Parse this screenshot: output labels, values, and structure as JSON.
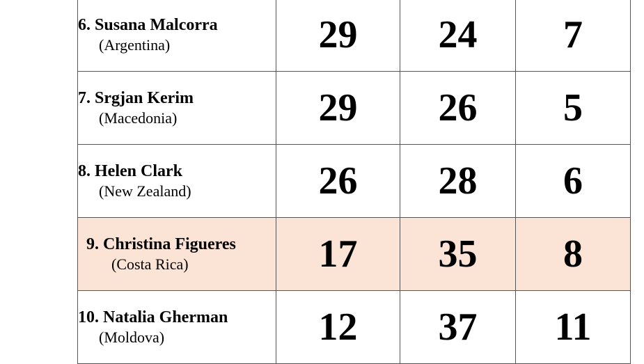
{
  "highlight_color": "#fbe4d6",
  "rows": [
    {
      "index": "6.",
      "name": "Susana Malcorra",
      "country": "(Argentina)",
      "v1": "29",
      "v2": "24",
      "v3": "7",
      "highlighted": false
    },
    {
      "index": "7.",
      "name": "Srgjan Kerim",
      "country": "(Macedonia)",
      "v1": "29",
      "v2": "26",
      "v3": "5",
      "highlighted": false
    },
    {
      "index": "8.",
      "name": "Helen Clark",
      "country": "(New Zealand)",
      "v1": "26",
      "v2": "28",
      "v3": "6",
      "highlighted": false
    },
    {
      "index": "9.",
      "name": "Christina Figueres",
      "country": "(Costa Rica)",
      "v1": "17",
      "v2": "35",
      "v3": "8",
      "highlighted": true
    },
    {
      "index": "10.",
      "name": "Natalia Gherman",
      "country": "(Moldova)",
      "v1": "12",
      "v2": "37",
      "v3": "11",
      "highlighted": false
    }
  ]
}
